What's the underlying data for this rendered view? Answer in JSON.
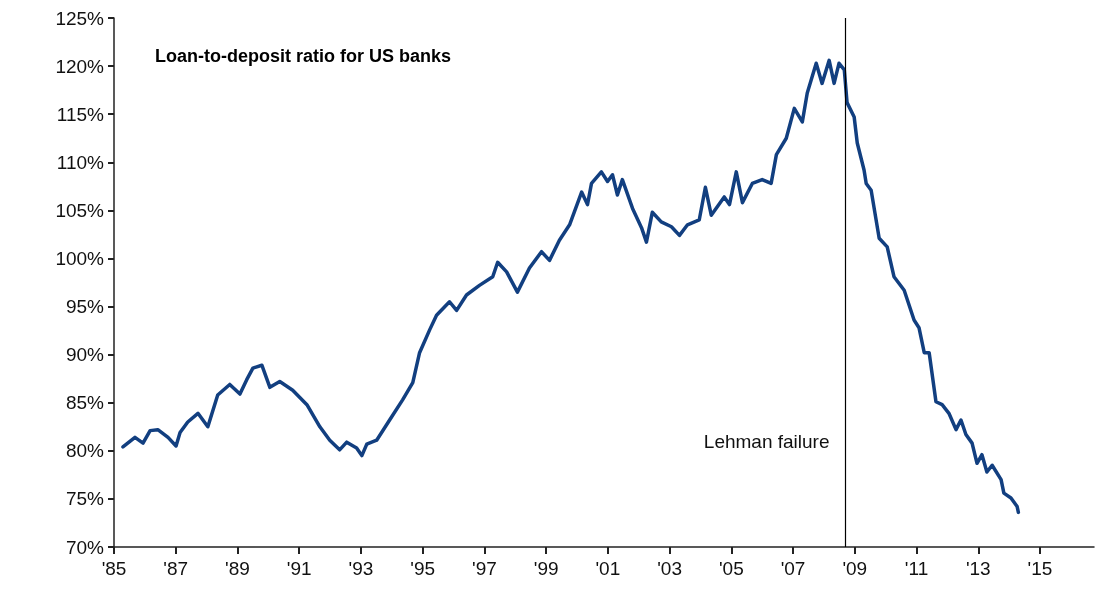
{
  "chart_data": {
    "type": "line",
    "title": "Loan-to-deposit ratio for US banks",
    "xlim": [
      1985,
      2016.75
    ],
    "xticks": [
      {
        "value": 1985,
        "label": "'85"
      },
      {
        "value": 1987,
        "label": "'87"
      },
      {
        "value": 1989,
        "label": "'89"
      },
      {
        "value": 1991,
        "label": "'91"
      },
      {
        "value": 1993,
        "label": "'93"
      },
      {
        "value": 1995,
        "label": "'95"
      },
      {
        "value": 1997,
        "label": "'97"
      },
      {
        "value": 1999,
        "label": "'99"
      },
      {
        "value": 2001,
        "label": "'01"
      },
      {
        "value": 2003,
        "label": "'03"
      },
      {
        "value": 2005,
        "label": "'05"
      },
      {
        "value": 2007,
        "label": "'07"
      },
      {
        "value": 2009,
        "label": "'09"
      },
      {
        "value": 2011,
        "label": "'11"
      },
      {
        "value": 2013,
        "label": "'13"
      },
      {
        "value": 2015,
        "label": "'15"
      }
    ],
    "ylim": [
      70,
      125
    ],
    "yticks": [
      {
        "value": 70,
        "label": "70%"
      },
      {
        "value": 75,
        "label": "75%"
      },
      {
        "value": 80,
        "label": "80%"
      },
      {
        "value": 85,
        "label": "85%"
      },
      {
        "value": 90,
        "label": "90%"
      },
      {
        "value": 95,
        "label": "95%"
      },
      {
        "value": 100,
        "label": "100%"
      },
      {
        "value": 105,
        "label": "105%"
      },
      {
        "value": 110,
        "label": "110%"
      },
      {
        "value": 115,
        "label": "115%"
      },
      {
        "value": 120,
        "label": "120%"
      },
      {
        "value": 125,
        "label": "125%"
      }
    ],
    "grid": false,
    "marker": "none",
    "line_style": "solid",
    "ref_lines": [
      {
        "axis": "x",
        "value": 2008.7,
        "label": "Lehman failure",
        "color": "#000000"
      }
    ],
    "series": [
      {
        "color": "#123f80",
        "x": [
          1985.29,
          1985.68,
          1985.94,
          1986.17,
          1986.42,
          1986.75,
          1987.01,
          1987.14,
          1987.39,
          1987.72,
          1988.04,
          1988.36,
          1988.75,
          1989.08,
          1989.3,
          1989.5,
          1989.79,
          1990.05,
          1990.37,
          1990.79,
          1991.25,
          1991.67,
          1991.99,
          1992.31,
          1992.54,
          1992.86,
          1993.03,
          1993.19,
          1993.51,
          1993.93,
          1994.35,
          1994.68,
          1994.9,
          1995.23,
          1995.45,
          1995.87,
          1996.1,
          1996.42,
          1996.84,
          1997.27,
          1997.43,
          1997.72,
          1998.07,
          1998.46,
          1998.85,
          1999.11,
          1999.43,
          1999.76,
          2000.15,
          2000.34,
          2000.47,
          2000.79,
          2000.99,
          2001.15,
          2001.31,
          2001.47,
          2001.8,
          2002.09,
          2002.25,
          2002.44,
          2002.73,
          2003.06,
          2003.32,
          2003.58,
          2003.96,
          2004.16,
          2004.35,
          2004.77,
          2004.94,
          2005.16,
          2005.36,
          2005.68,
          2006.0,
          2006.29,
          2006.46,
          2006.78,
          2007.04,
          2007.3,
          2007.46,
          2007.75,
          2007.94,
          2008.17,
          2008.33,
          2008.49,
          2008.66,
          2008.75,
          2008.98,
          2009.08,
          2009.3,
          2009.37,
          2009.53,
          2009.79,
          2010.05,
          2010.27,
          2010.6,
          2010.92,
          2011.08,
          2011.25,
          2011.41,
          2011.63,
          2011.83,
          2012.05,
          2012.28,
          2012.44,
          2012.6,
          2012.8,
          2012.96,
          2013.12,
          2013.28,
          2013.45,
          2013.74,
          2013.83,
          2014.06,
          2014.26,
          2014.3
        ],
        "values": [
          80.4,
          81.4,
          80.8,
          82.1,
          82.2,
          81.4,
          80.5,
          81.9,
          83.0,
          83.9,
          82.5,
          85.8,
          86.9,
          85.9,
          87.4,
          88.6,
          88.9,
          86.6,
          87.2,
          86.3,
          84.8,
          82.5,
          81.1,
          80.1,
          80.9,
          80.3,
          79.5,
          80.7,
          81.1,
          83.2,
          85.3,
          87.1,
          90.2,
          92.6,
          94.1,
          95.5,
          94.6,
          96.2,
          97.2,
          98.1,
          99.6,
          98.6,
          96.5,
          99.0,
          100.7,
          99.8,
          101.9,
          103.5,
          106.9,
          105.6,
          107.8,
          109.0,
          108.0,
          108.7,
          106.6,
          108.2,
          105.2,
          103.2,
          101.7,
          104.8,
          103.8,
          103.3,
          102.4,
          103.5,
          104.0,
          107.4,
          104.5,
          106.4,
          105.6,
          109.0,
          105.8,
          107.8,
          108.2,
          107.8,
          110.8,
          112.5,
          115.6,
          114.2,
          117.2,
          120.3,
          118.2,
          120.6,
          118.2,
          120.3,
          119.6,
          116.2,
          114.7,
          112.0,
          109.2,
          107.8,
          107.1,
          102.1,
          101.2,
          98.1,
          96.7,
          93.6,
          92.8,
          90.2,
          90.2,
          85.1,
          84.8,
          83.9,
          82.2,
          83.2,
          81.7,
          80.8,
          78.7,
          79.6,
          77.8,
          78.5,
          77.0,
          75.6,
          75.1,
          74.2,
          73.6
        ]
      }
    ]
  }
}
